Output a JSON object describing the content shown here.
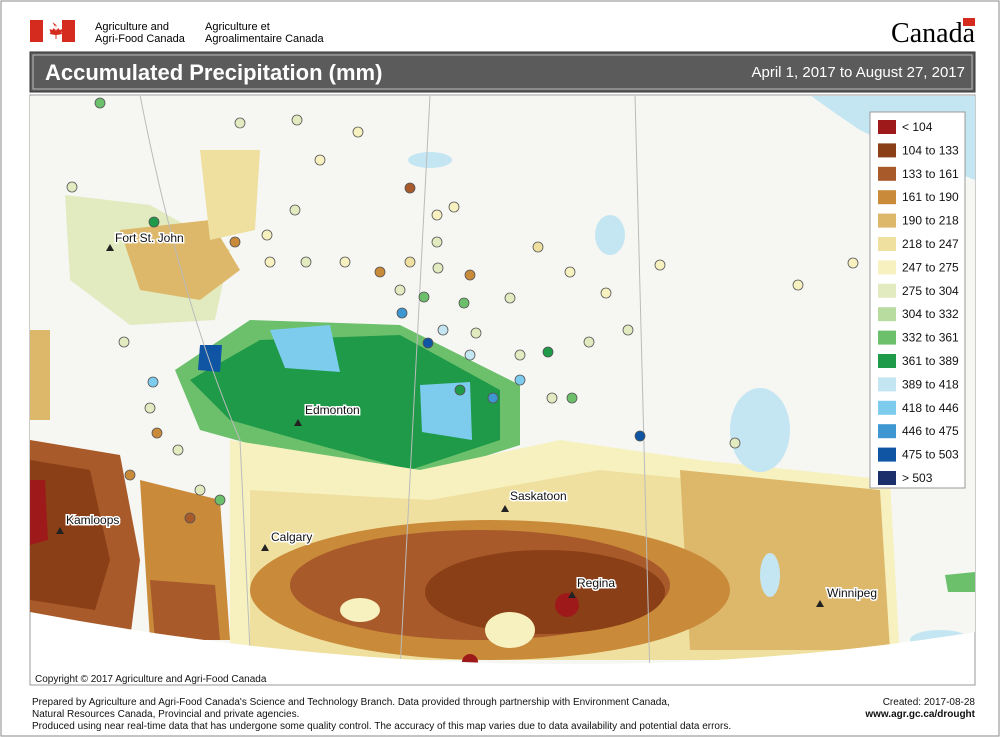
{
  "header": {
    "org_en": [
      "Agriculture and",
      "Agri-Food Canada"
    ],
    "org_fr": [
      "Agriculture et",
      "Agroalimentaire Canada"
    ],
    "wordmark": "Canada"
  },
  "title": "Accumulated Precipitation (mm)",
  "date_range": "April 1, 2017 to August 27, 2017",
  "legend": [
    {
      "label": "< 104",
      "color": "#9e1a1a"
    },
    {
      "label": "104 to 133",
      "color": "#8b3f17"
    },
    {
      "label": "133 to 161",
      "color": "#a85a2a"
    },
    {
      "label": "161 to 190",
      "color": "#c98a3a"
    },
    {
      "label": "190 to 218",
      "color": "#ddb86a"
    },
    {
      "label": "218 to 247",
      "color": "#efe0a0"
    },
    {
      "label": "247 to 275",
      "color": "#f7f1c0"
    },
    {
      "label": "275 to 304",
      "color": "#e2ebc0"
    },
    {
      "label": "304 to 332",
      "color": "#b8dba0"
    },
    {
      "label": "332 to 361",
      "color": "#6cc06c"
    },
    {
      "label": "361 to 389",
      "color": "#1e9a48"
    },
    {
      "label": "389 to 418",
      "color": "#c4e6f2"
    },
    {
      "label": "418 to 446",
      "color": "#7dccee"
    },
    {
      "label": "446 to 475",
      "color": "#3f97d2"
    },
    {
      "label": "475 to 503",
      "color": "#0f55a3"
    },
    {
      "label": "> 503",
      "color": "#1b2f6a"
    }
  ],
  "cities": [
    "Fort St. John",
    "Edmonton",
    "Saskatoon",
    "Kamloops",
    "Calgary",
    "Regina",
    "Winnipeg"
  ],
  "copyright": "Copyright © 2017 Agriculture and Agri-Food Canada",
  "footer": {
    "lines": [
      "Prepared by Agriculture and Agri-Food Canada's Science and Technology Branch. Data provided through partnership with Environment Canada,",
      "Natural Resources Canada, Provincial and private agencies.",
      "Produced using near real-time data that has undergone some quality control. The accuracy of this map varies due to data availability and potential data errors."
    ],
    "created": "Created: 2017-08-28",
    "url": "www.agr.gc.ca/drought"
  }
}
